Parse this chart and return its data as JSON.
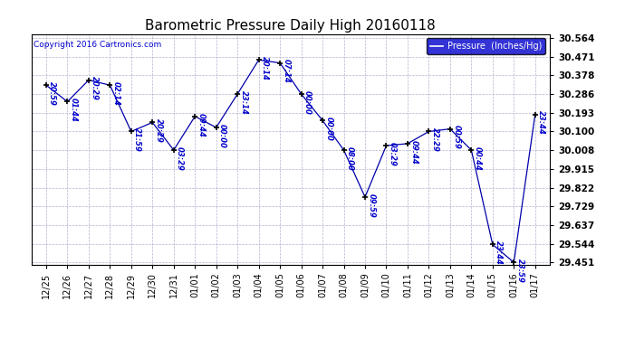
{
  "title": "Barometric Pressure Daily High 20160118",
  "copyright": "Copyright 2016 Cartronics.com",
  "legend_label": "Pressure  (Inches/Hg)",
  "x_labels": [
    "12/25",
    "12/26",
    "12/27",
    "12/28",
    "12/29",
    "12/30",
    "12/31",
    "01/01",
    "01/02",
    "01/03",
    "01/04",
    "01/05",
    "01/06",
    "01/07",
    "01/08",
    "01/09",
    "01/10",
    "01/11",
    "01/12",
    "01/13",
    "01/14",
    "01/15",
    "01/16",
    "01/17"
  ],
  "y_values": [
    30.33,
    30.248,
    30.355,
    30.33,
    30.1,
    30.145,
    30.008,
    30.175,
    30.12,
    30.286,
    30.455,
    30.44,
    30.286,
    30.155,
    30.008,
    29.775,
    30.03,
    30.04,
    30.1,
    30.113,
    30.008,
    29.54,
    29.451,
    30.185
  ],
  "point_labels": [
    "20:59",
    "01:44",
    "20:29",
    "02:14",
    "21:59",
    "20:29",
    "03:29",
    "09:44",
    "00:00",
    "23:14",
    "20:14",
    "07:14",
    "00:00",
    "00:00",
    "08:00",
    "09:59",
    "03:29",
    "09:44",
    "22:29",
    "00:59",
    "00:44",
    "23:44",
    "23:59",
    "23:44"
  ],
  "y_min": 29.451,
  "y_max": 30.564,
  "y_ticks": [
    29.451,
    29.544,
    29.637,
    29.729,
    29.822,
    29.915,
    30.008,
    30.1,
    30.193,
    30.286,
    30.378,
    30.471,
    30.564
  ],
  "y_tick_step": 0.093,
  "line_color": "#0000aa",
  "marker_color": "#000000",
  "background_color": "#ffffff",
  "grid_color": "#aaaacc",
  "title_color": "#000000",
  "label_color": "#0000cc",
  "legend_bg": "#0000cc",
  "legend_text_color": "#ffffff"
}
